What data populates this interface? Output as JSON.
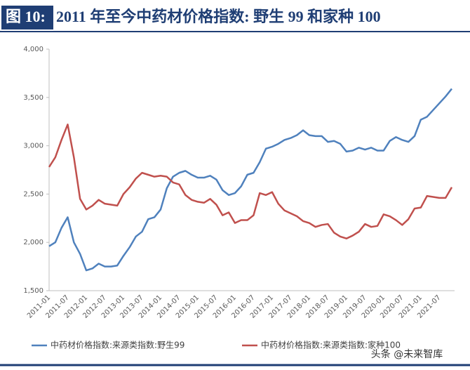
{
  "chart_data": {
    "type": "line",
    "figure_label": "图 10:",
    "title": "2011 年至今中药材价格指数: 野生 99 和家种 100",
    "watermark": "头条 @未来智库",
    "categories": [
      "2011-01",
      null,
      null,
      "2011-07",
      null,
      null,
      "2012-01",
      null,
      null,
      "2012-07",
      null,
      null,
      "2013-01",
      null,
      null,
      "2013-07",
      null,
      null,
      "2014-01",
      null,
      null,
      "2014-07",
      null,
      null,
      "2015-01",
      null,
      null,
      "2015-07",
      null,
      null,
      "2016-01",
      null,
      null,
      "2016-07",
      null,
      null,
      "2017-01",
      null,
      null,
      "2017-07",
      null,
      null,
      "2018-01",
      null,
      null,
      "2018-07",
      null,
      null,
      "2019-01",
      null,
      null,
      "2019-07",
      null,
      null,
      "2020-01",
      null,
      null,
      "2020-07",
      null,
      null,
      "2021-01",
      null,
      null,
      "2021-07",
      null,
      null
    ],
    "series": [
      {
        "name": "中药材价格指数:来源类指数:野生99",
        "color": "#4f81bd",
        "values": [
          1960,
          2000,
          2150,
          2260,
          2000,
          1880,
          1710,
          1730,
          1780,
          1750,
          1750,
          1760,
          1860,
          1950,
          2060,
          2110,
          2240,
          2260,
          2340,
          2560,
          2680,
          2720,
          2740,
          2700,
          2670,
          2670,
          2690,
          2650,
          2540,
          2490,
          2510,
          2580,
          2700,
          2720,
          2830,
          2970,
          2990,
          3020,
          3060,
          3080,
          3110,
          3160,
          3110,
          3100,
          3100,
          3040,
          3050,
          3020,
          2940,
          2950,
          2980,
          2960,
          2980,
          2950,
          2950,
          3050,
          3090,
          3060,
          3040,
          3100,
          3270,
          3300,
          3370,
          3440,
          3510,
          3590
        ]
      },
      {
        "name": "中药材价格指数:来源类指数:家种100",
        "color": "#c0504d",
        "values": [
          2780,
          2880,
          3060,
          3220,
          2880,
          2450,
          2340,
          2380,
          2440,
          2400,
          2390,
          2380,
          2500,
          2570,
          2660,
          2720,
          2700,
          2680,
          2690,
          2680,
          2620,
          2600,
          2490,
          2440,
          2420,
          2410,
          2450,
          2390,
          2280,
          2310,
          2200,
          2230,
          2230,
          2280,
          2510,
          2490,
          2520,
          2400,
          2330,
          2300,
          2270,
          2220,
          2200,
          2160,
          2180,
          2190,
          2100,
          2060,
          2040,
          2070,
          2110,
          2190,
          2160,
          2170,
          2290,
          2270,
          2230,
          2180,
          2240,
          2350,
          2360,
          2480,
          2470,
          2460,
          2460,
          2570
        ]
      }
    ],
    "ylim": [
      1500,
      4000
    ],
    "yticks": [
      {
        "value": 1500,
        "label": "1,500"
      },
      {
        "value": 2000,
        "label": "2,000"
      },
      {
        "value": 2500,
        "label": "2,500"
      },
      {
        "value": 3000,
        "label": "3,000"
      },
      {
        "value": 3500,
        "label": "3,500"
      },
      {
        "value": 4000,
        "label": "4,000"
      }
    ],
    "grid": false,
    "legend": "bottom"
  }
}
